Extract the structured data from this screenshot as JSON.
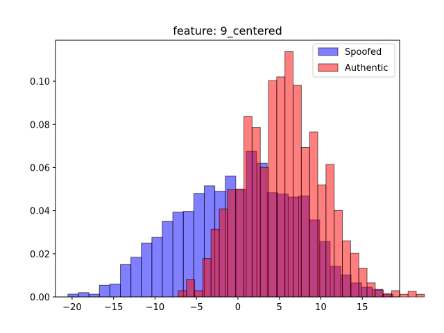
{
  "chart_data": {
    "type": "bar",
    "title": "feature: 9_centered",
    "xlabel": "",
    "ylabel": "",
    "xlim": [
      -22.0,
      19.5
    ],
    "ylim": [
      0,
      0.119
    ],
    "xticks": [
      -20,
      -15,
      -10,
      -5,
      0,
      5,
      10,
      15
    ],
    "yticks": [
      0.0,
      0.02,
      0.04,
      0.06,
      0.08,
      0.1
    ],
    "xtick_labels": [
      "−20",
      "−15",
      "−10",
      "−5",
      "0",
      "5",
      "10",
      "15"
    ],
    "ytick_labels": [
      "0.00",
      "0.02",
      "0.04",
      "0.06",
      "0.08",
      "0.10"
    ],
    "grid": false,
    "legend_position": "top-right",
    "series": [
      {
        "name": "Spoofed",
        "color": "#0000ff",
        "alpha": 0.5,
        "bin_start": -20.5,
        "bin_width": 1.265,
        "values": [
          0.0013,
          0.002,
          0.0013,
          0.0054,
          0.006,
          0.015,
          0.0184,
          0.025,
          0.0276,
          0.035,
          0.0393,
          0.0397,
          0.048,
          0.0515,
          0.049,
          0.056,
          0.0497,
          0.0675,
          0.062,
          0.0483,
          0.0477,
          0.0463,
          0.0468,
          0.0357,
          0.0257,
          0.0142,
          0.0102,
          0.0065,
          0.0045,
          0.0035,
          0.0012
        ]
      },
      {
        "name": "Authentic",
        "color": "#ff0000",
        "alpha": 0.5,
        "bin_start": -7.2,
        "bin_width": 0.99,
        "values": [
          0.0029,
          0.0081,
          0.0029,
          0.0178,
          0.0314,
          0.0408,
          0.0497,
          0.05,
          0.0837,
          0.0786,
          0.0601,
          0.1003,
          0.102,
          0.1137,
          0.0981,
          0.0693,
          0.0765,
          0.0519,
          0.0614,
          0.0401,
          0.026,
          0.0202,
          0.0133,
          0.0065,
          0.0032,
          0.0015,
          0.0029,
          0.0012,
          0.0026,
          0.0012
        ]
      }
    ]
  }
}
